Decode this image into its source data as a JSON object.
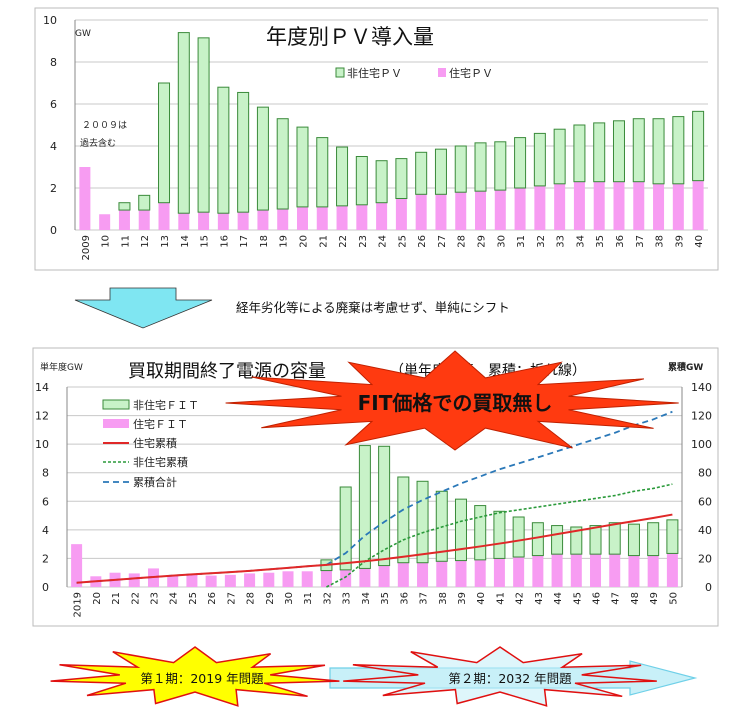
{
  "arrow_note": "経年劣化等による廃棄は考慮せず、単純にシフト",
  "burst_label": "FIT価格での買取無し",
  "phase1": "第１期：2019 年問題",
  "phase2": "第２期：2032 年問題",
  "colors": {
    "nonres_bar": "#c8f2c8",
    "nonres_edge": "#3a8a3a",
    "res_bar": "#f79cf2",
    "res_line": "#e02828",
    "nonres_line": "#2a9a3a",
    "total_line": "#2a78b8",
    "burst": "#ff3a10",
    "arrow": "#7fe6f2"
  },
  "chart_data": [
    {
      "type": "bar",
      "stacked": true,
      "title": "年度別ＰＶ導入量",
      "ylabel": "GW",
      "ylim": [
        0,
        10
      ],
      "yticks": [
        "0",
        "2",
        "4",
        "6",
        "8",
        "10"
      ],
      "annotation": [
        "２００９は",
        "過去含む"
      ],
      "legend_position": "top-center",
      "categories": [
        "2009",
        "10",
        "11",
        "12",
        "13",
        "14",
        "15",
        "16",
        "17",
        "18",
        "19",
        "20",
        "21",
        "22",
        "23",
        "24",
        "25",
        "26",
        "27",
        "28",
        "29",
        "30",
        "31",
        "32",
        "33",
        "34",
        "35",
        "36",
        "37",
        "38",
        "39",
        "40"
      ],
      "series": [
        {
          "name": "住宅ＰＶ",
          "values": [
            3.0,
            0.75,
            0.95,
            0.95,
            1.3,
            0.8,
            0.85,
            0.8,
            0.85,
            0.95,
            1.0,
            1.1,
            1.1,
            1.15,
            1.2,
            1.3,
            1.5,
            1.7,
            1.7,
            1.8,
            1.85,
            1.9,
            2.0,
            2.1,
            2.2,
            2.3,
            2.3,
            2.3,
            2.3,
            2.2,
            2.2,
            2.35
          ]
        },
        {
          "name": "非住宅ＰＶ",
          "totals": [
            3.0,
            0.75,
            1.3,
            1.65,
            7.0,
            9.4,
            9.15,
            6.8,
            6.55,
            5.85,
            5.3,
            4.9,
            4.4,
            3.95,
            3.5,
            3.3,
            3.4,
            3.7,
            3.85,
            4.0,
            4.15,
            4.2,
            4.4,
            4.6,
            4.8,
            5.0,
            5.1,
            5.2,
            5.3,
            5.3,
            5.4,
            5.65
          ]
        }
      ]
    },
    {
      "type": "bar+line",
      "title": "買取期間終了電源の容量",
      "subtitle": "（単年度：棒、累積：折れ線）",
      "ylabel": "単年度GW",
      "y2label": "累積GW",
      "ylim": [
        0,
        14
      ],
      "y2lim": [
        0,
        140
      ],
      "yticks": [
        "0",
        "2",
        "4",
        "6",
        "8",
        "10",
        "12",
        "14"
      ],
      "y2ticks": [
        "0",
        "20",
        "40",
        "60",
        "80",
        "100",
        "120",
        "140"
      ],
      "legend_position": "top-left",
      "legend": [
        "非住宅ＦＩＴ",
        "住宅ＦＩＴ",
        "住宅累積",
        "非住宅累積",
        "累積合計"
      ],
      "categories": [
        "2019",
        "20",
        "21",
        "22",
        "23",
        "24",
        "25",
        "26",
        "27",
        "28",
        "29",
        "30",
        "31",
        "32",
        "33",
        "34",
        "35",
        "36",
        "37",
        "38",
        "39",
        "40",
        "41",
        "42",
        "43",
        "44",
        "45",
        "46",
        "47",
        "48",
        "49",
        "50"
      ],
      "res_fit": [
        3.0,
        0.75,
        1.0,
        0.95,
        1.3,
        0.8,
        0.85,
        0.8,
        0.85,
        0.95,
        1.0,
        1.1,
        1.1,
        1.15,
        1.2,
        1.3,
        1.5,
        1.7,
        1.7,
        1.8,
        1.85,
        1.9,
        2.0,
        2.1,
        2.2,
        2.3,
        2.3,
        2.3,
        2.3,
        2.2,
        2.2,
        2.35
      ],
      "bar_totals": [
        3.0,
        0.75,
        1.0,
        0.95,
        1.3,
        0.8,
        0.85,
        0.8,
        0.85,
        0.95,
        1.0,
        1.1,
        1.1,
        1.9,
        7.0,
        9.9,
        9.85,
        7.7,
        7.4,
        6.7,
        6.15,
        5.7,
        5.3,
        4.9,
        4.5,
        4.3,
        4.2,
        4.3,
        4.5,
        4.4,
        4.5,
        4.7
      ],
      "res_cum": [
        3,
        4,
        5,
        6,
        7,
        8,
        8.8,
        9.6,
        10.4,
        11.3,
        12.3,
        13.4,
        14.5,
        15.5,
        16.7,
        18,
        19.5,
        21.2,
        22.9,
        24.7,
        26.5,
        28.4,
        30.4,
        32.5,
        34.7,
        37,
        39.3,
        41.6,
        43.9,
        46.1,
        48.3,
        50.7
      ],
      "nonres_cum": [
        null,
        null,
        null,
        null,
        null,
        null,
        null,
        null,
        null,
        null,
        null,
        null,
        null,
        0,
        7,
        18,
        26,
        33,
        38,
        42,
        46,
        49,
        52,
        54,
        56,
        58,
        60,
        62,
        64,
        67,
        69,
        72
      ],
      "total_cum": [
        3,
        4,
        5,
        6,
        7,
        8,
        8.8,
        9.6,
        10.4,
        11.3,
        12.3,
        13.4,
        14.5,
        15.5,
        23.7,
        36,
        45.5,
        54.2,
        60.9,
        66.7,
        72.5,
        77.4,
        82.4,
        86.5,
        90.7,
        95,
        99.3,
        103.6,
        107.9,
        113.1,
        117.3,
        122.7
      ]
    }
  ]
}
